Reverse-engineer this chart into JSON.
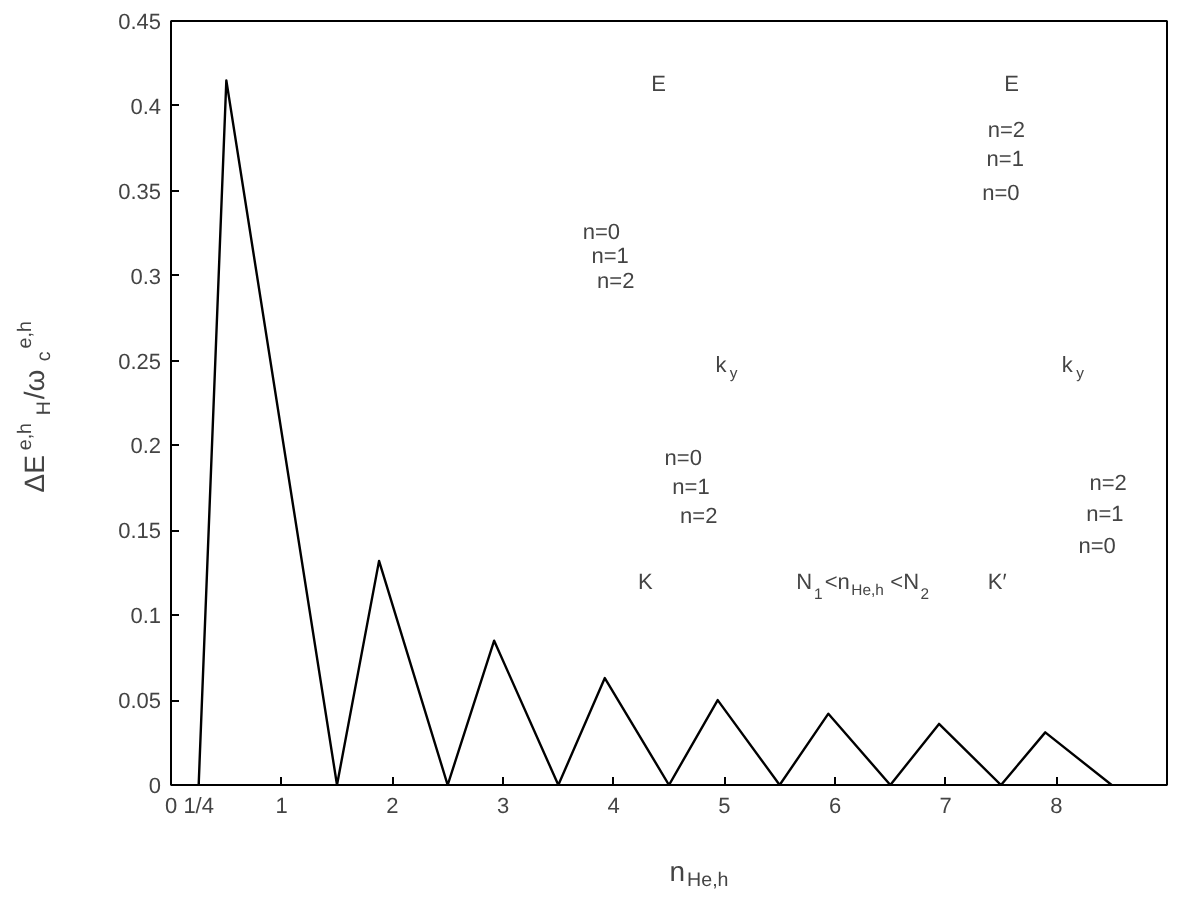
{
  "chart_data": {
    "type": "line",
    "xlabel": "n$_{He,h}$",
    "ylabel": "ΔE$^{e,h}$$_{H}$/ω$_{c}$$^{e,h}$",
    "x": [
      0.25,
      0.5,
      1.5,
      1.88,
      2.5,
      2.92,
      3.5,
      3.92,
      4.5,
      4.94,
      5.5,
      5.94,
      6.5,
      6.94,
      7.5,
      7.9,
      8.5
    ],
    "series": [
      {
        "color": "#000000",
        "values": [
          0,
          0.415,
          0,
          0.132,
          0,
          0.085,
          0,
          0.063,
          0,
          0.05,
          0,
          0.042,
          0,
          0.036,
          0,
          0.031,
          0
        ]
      }
    ],
    "xlim": [
      0,
      9
    ],
    "ylim": [
      0,
      0.45
    ],
    "xticks": [
      0,
      {
        "value": 0.25,
        "label": "1/4"
      },
      1,
      2,
      3,
      4,
      5,
      6,
      7,
      8
    ],
    "yticks": [
      0,
      0.05,
      0.1,
      0.15,
      0.2,
      0.25,
      0.3,
      0.35,
      0.4,
      0.45
    ],
    "grid": false,
    "marker": "none",
    "line_style": "solid",
    "annotations": [
      "E",
      "E",
      "n=0",
      "n=1",
      "n=2",
      "n=2",
      "n=1",
      "n=0",
      "k$_{y}$",
      "k$_{y}$",
      "n=0",
      "n=1",
      "n=2",
      "n=2",
      "n=1",
      "n=0",
      "K",
      "K′",
      "N$_{1}$<n$_{He,h}$<N$_{2}$"
    ]
  }
}
